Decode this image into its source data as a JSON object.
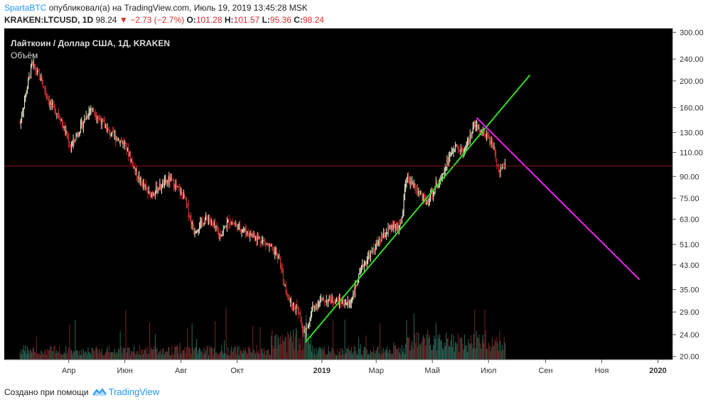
{
  "header": {
    "author": "SpartaBTC",
    "published_text": "опубликовал(а) на TradingView.com, Июль 19, 2019 13:45:28 MSK",
    "symbol": "KRAKEN:LTCUSD, 1D",
    "last": "98.24",
    "change": "−2.73 (−2.7%)",
    "o_label": "O:",
    "o": "101.28",
    "h_label": "H:",
    "h": "101.57",
    "l_label": "L:",
    "l": "95.36",
    "c_label": "C:",
    "c": "98.24"
  },
  "footer": {
    "text": "Создано при помощи",
    "brand": "TradingView"
  },
  "chart_data": {
    "type": "candlestick",
    "title": "Лайткоин / Доллар США, 1Д, KRAKEN",
    "subtitle": "Объём",
    "x_ticks": [
      "Апр",
      "Июн",
      "Авг",
      "Окт",
      "2019",
      "Мар",
      "Май",
      "Июл",
      "Сен",
      "Ноя",
      "2020"
    ],
    "x_tick_dates": [
      "2018-04-01",
      "2018-06-01",
      "2018-08-01",
      "2018-10-01",
      "2019-01-01",
      "2019-03-01",
      "2019-05-01",
      "2019-07-01",
      "2019-09-01",
      "2019-11-01",
      "2020-01-01"
    ],
    "y_scale": "log",
    "y_ticks": [
      "300.00",
      "240.00",
      "200.00",
      "160.00",
      "130.00",
      "110.00",
      "90.00",
      "75.00",
      "63.00",
      "51.00",
      "43.00",
      "35.00",
      "29.00",
      "24.00",
      "20.00"
    ],
    "y_range": [
      19.5,
      310
    ],
    "price_path": [
      {
        "date": "2018-02-07",
        "price": 140
      },
      {
        "date": "2018-02-20",
        "price": 230
      },
      {
        "date": "2018-03-01",
        "price": 205
      },
      {
        "date": "2018-03-12",
        "price": 165
      },
      {
        "date": "2018-03-22",
        "price": 150
      },
      {
        "date": "2018-04-03",
        "price": 115
      },
      {
        "date": "2018-04-25",
        "price": 160
      },
      {
        "date": "2018-05-15",
        "price": 130
      },
      {
        "date": "2018-06-01",
        "price": 118
      },
      {
        "date": "2018-06-15",
        "price": 90
      },
      {
        "date": "2018-06-28",
        "price": 77
      },
      {
        "date": "2018-07-20",
        "price": 88
      },
      {
        "date": "2018-08-05",
        "price": 75
      },
      {
        "date": "2018-08-15",
        "price": 57
      },
      {
        "date": "2018-08-30",
        "price": 64
      },
      {
        "date": "2018-09-12",
        "price": 55
      },
      {
        "date": "2018-09-22",
        "price": 62
      },
      {
        "date": "2018-10-10",
        "price": 57
      },
      {
        "date": "2018-10-31",
        "price": 52
      },
      {
        "date": "2018-11-15",
        "price": 46
      },
      {
        "date": "2018-11-25",
        "price": 32
      },
      {
        "date": "2018-12-05",
        "price": 30
      },
      {
        "date": "2018-12-14",
        "price": 24
      },
      {
        "date": "2018-12-22",
        "price": 30
      },
      {
        "date": "2018-12-31",
        "price": 32
      },
      {
        "date": "2019-01-15",
        "price": 32
      },
      {
        "date": "2019-01-31",
        "price": 31
      },
      {
        "date": "2019-02-15",
        "price": 43
      },
      {
        "date": "2019-02-28",
        "price": 50
      },
      {
        "date": "2019-03-15",
        "price": 58
      },
      {
        "date": "2019-03-28",
        "price": 60
      },
      {
        "date": "2019-04-03",
        "price": 90
      },
      {
        "date": "2019-04-15",
        "price": 80
      },
      {
        "date": "2019-04-25",
        "price": 72
      },
      {
        "date": "2019-05-10",
        "price": 90
      },
      {
        "date": "2019-05-25",
        "price": 115
      },
      {
        "date": "2019-06-05",
        "price": 110
      },
      {
        "date": "2019-06-15",
        "price": 135
      },
      {
        "date": "2019-06-25",
        "price": 132
      },
      {
        "date": "2019-07-05",
        "price": 118
      },
      {
        "date": "2019-07-12",
        "price": 95
      },
      {
        "date": "2019-07-19",
        "price": 98.24
      }
    ],
    "trendlines": [
      {
        "color": "#33dd22",
        "from": {
          "date": "2018-12-14",
          "price": 22.5
        },
        "to": {
          "date": "2019-08-15",
          "price": 210
        }
      },
      {
        "color": "#ee22ee",
        "from": {
          "date": "2019-06-18",
          "price": 147
        },
        "to": {
          "date": "2019-12-12",
          "price": 38
        }
      }
    ],
    "last_price_line": 98.24,
    "colors": {
      "background": "#000000",
      "up": "#e8e8c8",
      "down": "#d32f2f",
      "vol_up": "#2f6f5e",
      "vol_down": "#7a2a2a",
      "grid": "#222222"
    }
  }
}
